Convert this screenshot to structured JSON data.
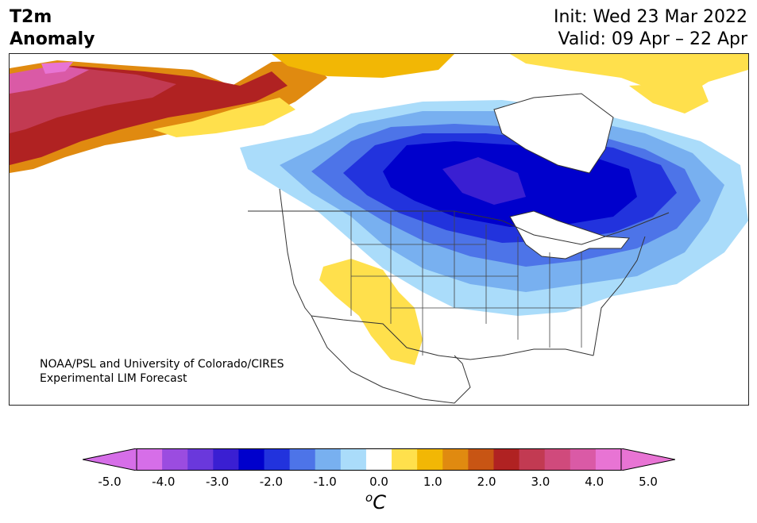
{
  "header": {
    "variable": "T2m",
    "subtitle": "Anomaly",
    "init": "Init: Wed 23 Mar 2022",
    "valid": "Valid: 09 Apr – 22 Apr"
  },
  "credit": {
    "line1": "NOAA/PSL and University of Colorado/CIRES",
    "line2": "Experimental LIM Forecast"
  },
  "colorbar": {
    "unit_base": "C",
    "unit_sup": "o",
    "tick_labels": [
      "-5.0",
      "-4.0",
      "-3.0",
      "-2.0",
      "-1.0",
      "0.0",
      "1.0",
      "2.0",
      "3.0",
      "4.0",
      "5.0"
    ],
    "levels": [
      -5.0,
      -4.5,
      -4.0,
      -3.5,
      -3.0,
      -2.5,
      -2.0,
      -1.5,
      -1.0,
      -0.5,
      0.5,
      1.0,
      1.5,
      2.0,
      2.5,
      3.0,
      3.5,
      4.0,
      4.5,
      5.0
    ],
    "colors": [
      "#d66ee8",
      "#9b4ce0",
      "#6a38dc",
      "#3a1fd2",
      "#0000cc",
      "#2233dd",
      "#4d74e8",
      "#78b0f0",
      "#aadcfa",
      "#ffffff",
      "#ffe04c",
      "#f2b705",
      "#e08a10",
      "#c85514",
      "#b02222",
      "#c23a52",
      "#d04a7c",
      "#da5aa6",
      "#e874d4"
    ],
    "under_color": "#d66ee8",
    "over_color": "#e874d4"
  },
  "map": {
    "region": "North America",
    "land_color": "#ffffff",
    "border_color": "#333333"
  }
}
